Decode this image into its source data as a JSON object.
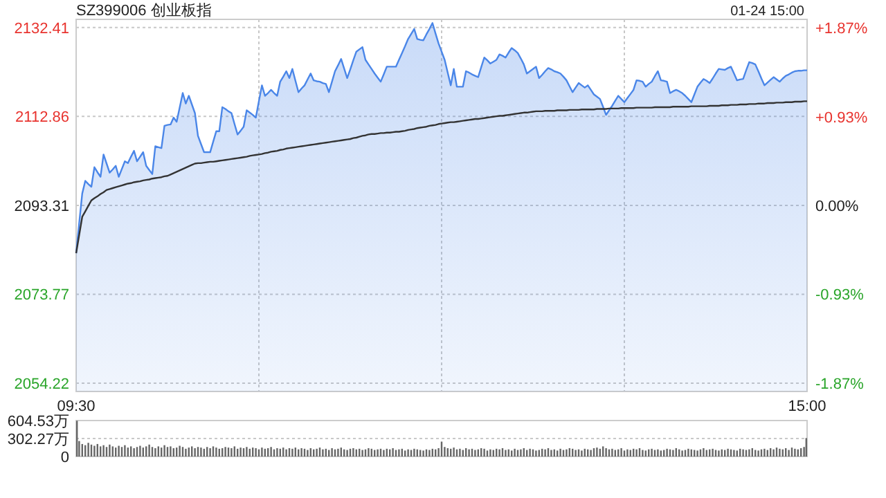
{
  "chart_data": [
    {
      "type": "area",
      "title": "SZ399006 创业板指",
      "annotations": [
        "01-24 15:00"
      ],
      "categories": [
        "09:30",
        null,
        null,
        null,
        null,
        null,
        null,
        null,
        null,
        null,
        null,
        null,
        null,
        null,
        null,
        null,
        null,
        null,
        null,
        null,
        null,
        null,
        null,
        null,
        null,
        null,
        null,
        null,
        null,
        null,
        null,
        null,
        null,
        null,
        null,
        null,
        null,
        null,
        null,
        null,
        null,
        null,
        null,
        null,
        null,
        null,
        null,
        null,
        null,
        null,
        null,
        null,
        null,
        null,
        null,
        null,
        null,
        null,
        null,
        null,
        null,
        null,
        null,
        null,
        null,
        null,
        null,
        null,
        null,
        null,
        null,
        null,
        null,
        null,
        null,
        null,
        null,
        null,
        null,
        null,
        null,
        null,
        null,
        null,
        null,
        null,
        null,
        null,
        null,
        null,
        null,
        null,
        null,
        null,
        null,
        null,
        null,
        null,
        null,
        null,
        null,
        null,
        null,
        null,
        null,
        null,
        null,
        null,
        null,
        null,
        null,
        null,
        null,
        null,
        null,
        null,
        null,
        null,
        null,
        null,
        null,
        null,
        null,
        null,
        null,
        null,
        null,
        null,
        null,
        null,
        null,
        null,
        null,
        null,
        null,
        null,
        null,
        null,
        null,
        null,
        null,
        null,
        null,
        null,
        null,
        null,
        null,
        null,
        null,
        null,
        null,
        null,
        null,
        null,
        null,
        null,
        null,
        null,
        null,
        null,
        null,
        null,
        null,
        null,
        null,
        null,
        null,
        null,
        null,
        null,
        null,
        null,
        null,
        null,
        null,
        null,
        null,
        null,
        null,
        null,
        null,
        null,
        null,
        null,
        null,
        null,
        null,
        null,
        null,
        null,
        null,
        null,
        null,
        null,
        null,
        null,
        null,
        null,
        null,
        null,
        null,
        null,
        null,
        null,
        null,
        null,
        null,
        null,
        null,
        null,
        null,
        null,
        null,
        null,
        null,
        null,
        null,
        null,
        null,
        null,
        null,
        null,
        null,
        null,
        null,
        null,
        null,
        null,
        null,
        null,
        null,
        null,
        null,
        null,
        null,
        null,
        null,
        null,
        null,
        null,
        "15:00"
      ],
      "ylim": [
        2052.4,
        2134.2
      ],
      "yticks": [
        2054.22,
        2073.77,
        2093.31,
        2112.86,
        2132.41
      ],
      "y2lim": [
        -1.96,
        1.96
      ],
      "y2ticks": [
        {
          "value": -1.87,
          "label": "-1.87%"
        },
        {
          "value": -0.93,
          "label": "-0.93%"
        },
        {
          "value": 0,
          "label": "0.00%"
        },
        {
          "value": 0.93,
          "label": "+0.93%"
        },
        {
          "value": 1.87,
          "label": "+1.87%"
        }
      ],
      "grid": true,
      "series": [
        {
          "type": "area",
          "color": "#4a86e8",
          "values": [
            2082.8,
            2089.4,
            2095.9,
            2098.7,
            2098.0,
            2097.4,
            2101.7,
            2100.6,
            2099.6,
            2104.5,
            2102.5,
            2100.5,
            2101.2,
            2102.0,
            2099.6,
            2101.3,
            2103.0,
            2102.6,
            2104.0,
            2105.3,
            2103.0,
            2104.0,
            2105.0,
            2102.0,
            2101.1,
            2100.2,
            2106.3,
            2106.1,
            2105.9,
            2110.8,
            2111.0,
            2111.1,
            2112.6,
            2111.7,
            2114.8,
            2118.0,
            2115.7,
            2117.4,
            2115.5,
            2113.6,
            2108.6,
            2106.8,
            2105.0,
            2105.0,
            2105.0,
            2107.3,
            2109.6,
            2109.6,
            2114.9,
            2114.5,
            2114.0,
            2113.6,
            2111.2,
            2108.9,
            2109.7,
            2110.6,
            2114.2,
            2113.7,
            2113.2,
            2112.6,
            2116.2,
            2119.7,
            2117.4,
            2118.0,
            2118.7,
            2118.0,
            2117.4,
            2120.5,
            2121.6,
            2122.8,
            2121.3,
            2123.3,
            2120.7,
            2118.2,
            2119.0,
            2119.7,
            2121.0,
            2122.3,
            2120.8,
            2120.6,
            2120.5,
            2120.2,
            2120.0,
            2118.2,
            2120.5,
            2122.8,
            2124.1,
            2125.5,
            2123.4,
            2121.3,
            2123.2,
            2125.2,
            2127.1,
            2127.6,
            2128.1,
            2125.3,
            2124.3,
            2123.3,
            2122.3,
            2121.4,
            2120.5,
            2122.1,
            2123.8,
            2123.8,
            2123.8,
            2123.8,
            2125.3,
            2126.8,
            2128.3,
            2129.9,
            2131.0,
            2132.1,
            2129.9,
            2129.7,
            2129.6,
            2130.9,
            2132.1,
            2133.4,
            2131.1,
            2128.9,
            2127.1,
            2125.3,
            2122.5,
            2119.7,
            2123.3,
            2119.4,
            2119.4,
            2119.4,
            2122.8,
            2122.5,
            2122.1,
            2121.8,
            2121.5,
            2123.7,
            2125.8,
            2125.2,
            2124.5,
            2124.9,
            2125.3,
            2126.5,
            2126.2,
            2125.8,
            2126.9,
            2127.9,
            2127.4,
            2126.8,
            2125.6,
            2124.3,
            2122.3,
            2122.8,
            2123.3,
            2123.8,
            2121.3,
            2122.0,
            2122.8,
            2123.5,
            2123.2,
            2122.8,
            2122.6,
            2122.3,
            2121.6,
            2120.8,
            2119.5,
            2118.2,
            2119.2,
            2120.2,
            2119.7,
            2119.2,
            2119.7,
            2118.7,
            2117.7,
            2117.2,
            2116.7,
            2115.0,
            2113.2,
            2114.2,
            2115.2,
            2116.3,
            2117.4,
            2116.7,
            2116.0,
            2116.9,
            2117.8,
            2118.7,
            2120.8,
            2120.7,
            2120.5,
            2119.4,
            2120.0,
            2120.5,
            2121.7,
            2122.8,
            2120.8,
            2120.7,
            2120.5,
            2118.0,
            2118.4,
            2118.7,
            2118.4,
            2118.0,
            2117.4,
            2116.7,
            2116.0,
            2117.7,
            2119.4,
            2120.3,
            2121.1,
            2120.7,
            2120.2,
            2121.2,
            2122.3,
            2123.3,
            2123.2,
            2123.1,
            2123.5,
            2123.8,
            2122.3,
            2120.8,
            2121.0,
            2121.1,
            2123.0,
            2124.8,
            2124.6,
            2124.3,
            2122.8,
            2121.2,
            2119.7,
            2120.3,
            2120.9,
            2121.5,
            2121.0,
            2120.5,
            2121.2,
            2121.8,
            2122.1,
            2122.5,
            2122.8,
            2122.9,
            2122.9,
            2123.0,
            2123.0
          ]
        },
        {
          "type": "line",
          "color": "#333333",
          "values": [
            2082.8,
            2086.8,
            2090.8,
            2092.0,
            2093.2,
            2094.4,
            2094.9,
            2095.3,
            2095.8,
            2096.2,
            2096.7,
            2096.9,
            2097.1,
            2097.3,
            2097.5,
            2097.7,
            2097.9,
            2098.1,
            2098.2,
            2098.4,
            2098.5,
            2098.6,
            2098.8,
            2098.9,
            2099.0,
            2099.2,
            2099.3,
            2099.4,
            2099.5,
            2099.7,
            2099.8,
            2100.1,
            2100.4,
            2100.7,
            2101.0,
            2101.3,
            2101.6,
            2101.9,
            2102.2,
            2102.5,
            2102.6,
            2102.6,
            2102.7,
            2102.8,
            2102.9,
            2102.9,
            2103.0,
            2103.1,
            2103.2,
            2103.3,
            2103.4,
            2103.5,
            2103.6,
            2103.7,
            2103.8,
            2103.9,
            2104.0,
            2104.2,
            2104.3,
            2104.4,
            2104.5,
            2104.6,
            2104.8,
            2104.9,
            2105.1,
            2105.2,
            2105.3,
            2105.5,
            2105.6,
            2105.8,
            2105.9,
            2106.0,
            2106.1,
            2106.2,
            2106.3,
            2106.4,
            2106.5,
            2106.6,
            2106.7,
            2106.8,
            2106.9,
            2107.0,
            2107.1,
            2107.2,
            2107.3,
            2107.4,
            2107.5,
            2107.6,
            2107.7,
            2107.8,
            2107.9,
            2108.1,
            2108.2,
            2108.4,
            2108.6,
            2108.7,
            2108.9,
            2109.0,
            2109.0,
            2109.1,
            2109.2,
            2109.2,
            2109.3,
            2109.3,
            2109.4,
            2109.5,
            2109.5,
            2109.6,
            2109.7,
            2109.9,
            2110.0,
            2110.1,
            2110.3,
            2110.4,
            2110.5,
            2110.6,
            2110.8,
            2110.9,
            2111.0,
            2111.2,
            2111.3,
            2111.4,
            2111.5,
            2111.6,
            2111.6,
            2111.7,
            2111.8,
            2111.9,
            2112.0,
            2112.1,
            2112.2,
            2112.3,
            2112.3,
            2112.4,
            2112.5,
            2112.6,
            2112.7,
            2112.8,
            2112.9,
            2113.0,
            2113.0,
            2113.1,
            2113.2,
            2113.3,
            2113.4,
            2113.5,
            2113.6,
            2113.7,
            2113.7,
            2113.8,
            2113.9,
            2114.0,
            2114.0,
            2114.0,
            2114.1,
            2114.1,
            2114.1,
            2114.1,
            2114.2,
            2114.2,
            2114.2,
            2114.2,
            2114.3,
            2114.3,
            2114.3,
            2114.3,
            2114.4,
            2114.4,
            2114.4,
            2114.4,
            2114.4,
            2114.5,
            2114.5,
            2114.5,
            2114.5,
            2114.6,
            2114.6,
            2114.6,
            2114.6,
            2114.7,
            2114.7,
            2114.7,
            2114.7,
            2114.7,
            2114.8,
            2114.8,
            2114.8,
            2114.8,
            2114.8,
            2114.8,
            2114.9,
            2114.9,
            2114.9,
            2114.9,
            2114.9,
            2114.9,
            2115.0,
            2115.0,
            2115.0,
            2115.0,
            2115.0,
            2115.0,
            2115.1,
            2115.1,
            2115.1,
            2115.1,
            2115.1,
            2115.1,
            2115.2,
            2115.2,
            2115.2,
            2115.2,
            2115.3,
            2115.3,
            2115.3,
            2115.4,
            2115.4,
            2115.4,
            2115.5,
            2115.5,
            2115.5,
            2115.6,
            2115.6,
            2115.6,
            2115.7,
            2115.7,
            2115.7,
            2115.8,
            2115.8,
            2115.8,
            2115.9,
            2115.9,
            2115.9,
            2116.0,
            2116.0,
            2116.0,
            2116.1,
            2116.1,
            2116.1,
            2116.2,
            2116.2
          ]
        }
      ]
    },
    {
      "type": "bar",
      "color": "#666666",
      "ylim": [
        0,
        604.53
      ],
      "yticks": [
        0,
        {
          "value": 302.27,
          "label": "302.27万"
        },
        {
          "value": 604.53,
          "label": "604.53万"
        }
      ],
      "grid": "y",
      "tick_labels": "y",
      "categories": [
        null,
        null,
        null,
        null,
        null,
        null,
        null,
        null,
        null,
        null,
        null,
        null,
        null,
        null,
        null,
        null,
        null,
        null,
        null,
        null,
        null,
        null,
        null,
        null,
        null,
        null,
        null,
        null,
        null,
        null,
        null,
        null,
        null,
        null,
        null,
        null,
        null,
        null,
        null,
        null,
        null,
        null,
        null,
        null,
        null,
        null,
        null,
        null,
        null,
        null,
        null,
        null,
        null,
        null,
        null,
        null,
        null,
        null,
        null,
        null,
        null,
        null,
        null,
        null,
        null,
        null,
        null,
        null,
        null,
        null,
        null,
        null,
        null,
        null,
        null,
        null,
        null,
        null,
        null,
        null,
        null,
        null,
        null,
        null,
        null,
        null,
        null,
        null,
        null,
        null,
        null,
        null,
        null,
        null,
        null,
        null,
        null,
        null,
        null,
        null,
        null,
        null,
        null,
        null,
        null,
        null,
        null,
        null,
        null,
        null,
        null,
        null,
        null,
        null,
        null,
        null,
        null,
        null,
        null,
        null,
        null,
        null,
        null,
        null,
        null,
        null,
        null,
        null,
        null,
        null,
        null,
        null,
        null,
        null,
        null,
        null,
        null,
        null,
        null,
        null,
        null,
        null,
        null,
        null,
        null,
        null,
        null,
        null,
        null,
        null,
        null,
        null,
        null,
        null,
        null,
        null,
        null,
        null,
        null,
        null,
        null,
        null,
        null,
        null,
        null,
        null,
        null,
        null,
        null,
        null,
        null,
        null,
        null,
        null,
        null,
        null,
        null,
        null,
        null,
        null,
        null,
        null,
        null,
        null,
        null,
        null,
        null,
        null,
        null,
        null,
        null,
        null,
        null,
        null,
        null,
        null,
        null,
        null,
        null,
        null,
        null,
        null,
        null,
        null,
        null,
        null,
        null,
        null,
        null,
        null,
        null,
        null,
        null,
        null,
        null,
        null,
        null,
        null,
        null,
        null,
        null,
        null,
        null,
        null,
        null,
        null,
        null,
        null,
        null,
        null,
        null,
        null,
        null,
        null,
        null,
        null,
        null,
        null,
        null,
        null,
        null
      ],
      "values": [
        600,
        260,
        210,
        190,
        230,
        200,
        180,
        210,
        170,
        190,
        160,
        200,
        170,
        150,
        180,
        160,
        190,
        150,
        170,
        140,
        160,
        180,
        150,
        170,
        200,
        160,
        140,
        170,
        150,
        190,
        160,
        170,
        140,
        150,
        180,
        160,
        130,
        150,
        170,
        140,
        160,
        150,
        130,
        160,
        140,
        170,
        150,
        130,
        140,
        160,
        150,
        140,
        170,
        130,
        150,
        140,
        160,
        130,
        150,
        140,
        120,
        150,
        130,
        140,
        160,
        120,
        140,
        130,
        150,
        120,
        140,
        130,
        150,
        120,
        140,
        130,
        110,
        140,
        120,
        130,
        150,
        120,
        130,
        110,
        140,
        120,
        130,
        150,
        120,
        110,
        130,
        140,
        120,
        130,
        110,
        120,
        140,
        130,
        110,
        120,
        130,
        110,
        130,
        120,
        140,
        110,
        120,
        130,
        100,
        120,
        110,
        130,
        120,
        110,
        100,
        120,
        110,
        130,
        120,
        140,
        250,
        160,
        140,
        130,
        150,
        120,
        130,
        110,
        140,
        120,
        130,
        110,
        120,
        140,
        130,
        100,
        120,
        110,
        130,
        120,
        140,
        110,
        120,
        100,
        130,
        110,
        120,
        140,
        110,
        130,
        120,
        100,
        110,
        130,
        120,
        140,
        110,
        120,
        100,
        130,
        110,
        120,
        140,
        130,
        110,
        120,
        100,
        130,
        120,
        110,
        140,
        150,
        130,
        170,
        140,
        120,
        130,
        110,
        120,
        140,
        100,
        120,
        110,
        130,
        120,
        140,
        110,
        100,
        120,
        130,
        110,
        120,
        100,
        110,
        130,
        120,
        110,
        140,
        120,
        100,
        110,
        130,
        120,
        110,
        100,
        120,
        140,
        110,
        120,
        130,
        110,
        100,
        120,
        110,
        130,
        120,
        110,
        100,
        130,
        120,
        110,
        120,
        140,
        110,
        100,
        120,
        130,
        110,
        140,
        120,
        150,
        130,
        120,
        140,
        110,
        150,
        130,
        120,
        140,
        160,
        310
      ]
    }
  ]
}
